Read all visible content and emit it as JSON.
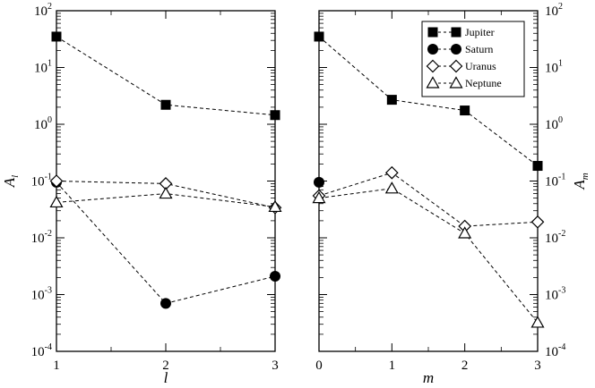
{
  "chart_data": [
    {
      "type": "line",
      "yscale": "log",
      "xlabel": "l",
      "ylabel": {
        "base": "A",
        "sub": "l"
      },
      "xlim": [
        1,
        3
      ],
      "ylim": [
        0.0001,
        100
      ],
      "xticks": [
        {
          "value": 1,
          "label": "1"
        },
        {
          "value": 2,
          "label": "2"
        },
        {
          "value": 3,
          "label": "3"
        }
      ],
      "yticks": [
        {
          "value": 0.0001,
          "base": "10",
          "exp": "-4"
        },
        {
          "value": 0.001,
          "base": "10",
          "exp": "-3"
        },
        {
          "value": 0.01,
          "base": "10",
          "exp": "-2"
        },
        {
          "value": 0.1,
          "base": "10",
          "exp": "-1"
        },
        {
          "value": 1,
          "base": "10",
          "exp": "0"
        },
        {
          "value": 10,
          "base": "10",
          "exp": "1"
        },
        {
          "value": 100,
          "base": "10",
          "exp": "2"
        }
      ],
      "tick_labels_side": "left",
      "series": [
        {
          "name": "Jupiter",
          "marker": "square-filled",
          "x": [
            1,
            2,
            3
          ],
          "y": [
            35,
            2.2,
            1.45
          ]
        },
        {
          "name": "Saturn",
          "marker": "circle-filled",
          "x": [
            1,
            2,
            3
          ],
          "y": [
            0.095,
            0.0007,
            0.0021
          ]
        },
        {
          "name": "Uranus",
          "marker": "diamond-open",
          "x": [
            1,
            2,
            3
          ],
          "y": [
            0.1,
            0.09,
            0.034
          ]
        },
        {
          "name": "Neptune",
          "marker": "triangle-open",
          "x": [
            1,
            2,
            3
          ],
          "y": [
            0.042,
            0.06,
            0.035
          ]
        }
      ]
    },
    {
      "type": "line",
      "yscale": "log",
      "xlabel": "m",
      "ylabel": {
        "base": "A",
        "sub": "m"
      },
      "xlim": [
        0,
        3
      ],
      "ylim": [
        0.0001,
        100
      ],
      "xticks": [
        {
          "value": 0,
          "label": "0"
        },
        {
          "value": 1,
          "label": "1"
        },
        {
          "value": 2,
          "label": "2"
        },
        {
          "value": 3,
          "label": "3"
        }
      ],
      "yticks": [
        {
          "value": 0.0001,
          "base": "10",
          "exp": "-4"
        },
        {
          "value": 0.001,
          "base": "10",
          "exp": "-3"
        },
        {
          "value": 0.01,
          "base": "10",
          "exp": "-2"
        },
        {
          "value": 0.1,
          "base": "10",
          "exp": "-1"
        },
        {
          "value": 1,
          "base": "10",
          "exp": "0"
        },
        {
          "value": 10,
          "base": "10",
          "exp": "1"
        },
        {
          "value": 100,
          "base": "10",
          "exp": "2"
        }
      ],
      "tick_labels_side": "right",
      "legend": {
        "position": "top-right"
      },
      "series": [
        {
          "name": "Jupiter",
          "marker": "square-filled",
          "x": [
            0,
            1,
            2,
            3
          ],
          "y": [
            35,
            2.7,
            1.75,
            0.185
          ]
        },
        {
          "name": "Saturn",
          "marker": "circle-filled",
          "x": [
            0
          ],
          "y": [
            0.095
          ]
        },
        {
          "name": "Uranus",
          "marker": "diamond-open",
          "x": [
            0,
            1,
            2,
            3
          ],
          "y": [
            0.055,
            0.14,
            0.016,
            0.019
          ]
        },
        {
          "name": "Neptune",
          "marker": "triangle-open",
          "x": [
            0,
            1,
            2,
            3
          ],
          "y": [
            0.05,
            0.074,
            0.012,
            0.00032
          ]
        }
      ]
    }
  ]
}
